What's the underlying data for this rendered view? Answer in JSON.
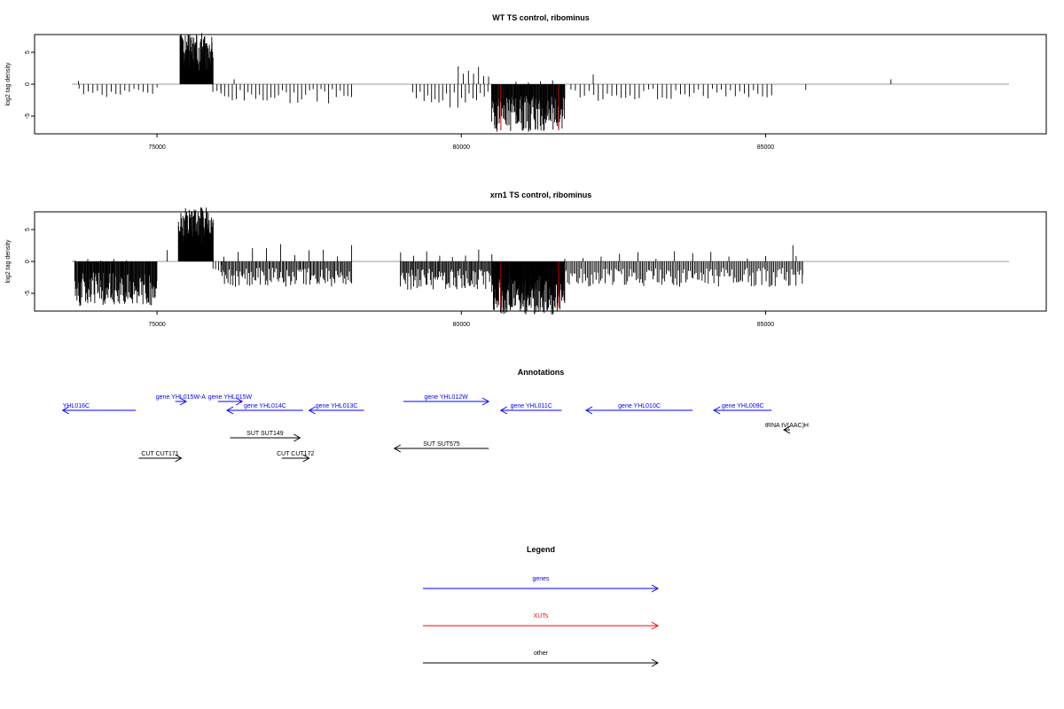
{
  "chart_data": [
    {
      "type": "bar",
      "title": "WT TS control, ribominus",
      "ylabel": "log2 tag density",
      "xlim": [
        73600,
        89000
      ],
      "ylim": [
        -9,
        9
      ],
      "x_ticks": [
        75000,
        80000,
        85000
      ],
      "x_tick_labels": [
        "75000",
        "80000",
        "85000"
      ],
      "y_ticks": [
        5,
        0,
        -5
      ],
      "y_tick_labels": [
        "5",
        "0",
        "-5"
      ],
      "xut_markers": [
        80650,
        81600
      ],
      "segments": [
        {
          "from": 73700,
          "to": 73720,
          "dir": 1,
          "maxval": 1.0,
          "n": 1,
          "seed": 1
        },
        {
          "from": 73720,
          "to": 75000,
          "dir": -1,
          "maxval": 2.0,
          "n": 18,
          "seed": 2
        },
        {
          "from": 75380,
          "to": 75920,
          "dir": 1,
          "maxval": 8.0,
          "n": 120,
          "seed": 3
        },
        {
          "from": 75920,
          "to": 76050,
          "dir": -1,
          "maxval": 1.5,
          "n": 3,
          "seed": 4
        },
        {
          "from": 76250,
          "to": 76280,
          "dir": 1,
          "maxval": 1.2,
          "n": 1,
          "seed": 5
        },
        {
          "from": 76050,
          "to": 78200,
          "dir": -1,
          "maxval": 3.0,
          "n": 35,
          "seed": 6
        },
        {
          "from": 79200,
          "to": 80500,
          "dir": -1,
          "maxval": 3.8,
          "n": 22,
          "seed": 7
        },
        {
          "from": 79950,
          "to": 80450,
          "dir": 1,
          "maxval": 3.0,
          "n": 7,
          "seed": 8
        },
        {
          "from": 80500,
          "to": 81700,
          "dir": -1,
          "maxval": 7.5,
          "n": 140,
          "seed": 9
        },
        {
          "from": 80900,
          "to": 81500,
          "dir": 1,
          "maxval": 0.6,
          "n": 4,
          "seed": 10
        },
        {
          "from": 82150,
          "to": 82180,
          "dir": 1,
          "maxval": 3.2,
          "n": 1,
          "seed": 11
        },
        {
          "from": 81800,
          "to": 85100,
          "dir": -1,
          "maxval": 2.6,
          "n": 45,
          "seed": 12
        },
        {
          "from": 85650,
          "to": 85670,
          "dir": -1,
          "maxval": 1.0,
          "n": 1,
          "seed": 13
        },
        {
          "from": 87050,
          "to": 87070,
          "dir": 1,
          "maxval": 1.0,
          "n": 1,
          "seed": 14
        }
      ]
    },
    {
      "type": "bar",
      "title": "xrn1 TS control, ribominus",
      "ylabel": "log2 tag density",
      "xlim": [
        73600,
        89000
      ],
      "ylim": [
        -9,
        9
      ],
      "x_ticks": [
        75000,
        80000,
        85000
      ],
      "x_tick_labels": [
        "75000",
        "80000",
        "85000"
      ],
      "y_ticks": [
        5,
        0,
        -5
      ],
      "y_tick_labels": [
        "5",
        "0",
        "-5"
      ],
      "xut_markers": [
        80650,
        81600
      ],
      "segments": [
        {
          "from": 73650,
          "to": 75000,
          "dir": -1,
          "maxval": 7.0,
          "n": 130,
          "seed": 21
        },
        {
          "from": 73650,
          "to": 74500,
          "dir": 1,
          "maxval": 0.5,
          "n": 5,
          "seed": 22
        },
        {
          "from": 75150,
          "to": 75180,
          "dir": 1,
          "maxval": 2.0,
          "n": 1,
          "seed": 23
        },
        {
          "from": 75350,
          "to": 75920,
          "dir": 1,
          "maxval": 8.5,
          "n": 130,
          "seed": 24
        },
        {
          "from": 75920,
          "to": 76100,
          "dir": -1,
          "maxval": 2.0,
          "n": 5,
          "seed": 25
        },
        {
          "from": 76050,
          "to": 78200,
          "dir": -1,
          "maxval": 4.0,
          "n": 110,
          "seed": 26
        },
        {
          "from": 76100,
          "to": 78200,
          "dir": 1,
          "maxval": 2.8,
          "n": 10,
          "seed": 27
        },
        {
          "from": 79000,
          "to": 80500,
          "dir": -1,
          "maxval": 4.5,
          "n": 90,
          "seed": 28
        },
        {
          "from": 79000,
          "to": 80500,
          "dir": 1,
          "maxval": 2.0,
          "n": 8,
          "seed": 29
        },
        {
          "from": 80500,
          "to": 81700,
          "dir": -1,
          "maxval": 8.5,
          "n": 200,
          "seed": 30
        },
        {
          "from": 81700,
          "to": 85600,
          "dir": -1,
          "maxval": 4.0,
          "n": 160,
          "seed": 31
        },
        {
          "from": 81700,
          "to": 85000,
          "dir": 1,
          "maxval": 1.6,
          "n": 12,
          "seed": 32
        },
        {
          "from": 85450,
          "to": 85500,
          "dir": 1,
          "maxval": 3.0,
          "n": 2,
          "seed": 33
        },
        {
          "from": 85600,
          "to": 85620,
          "dir": -1,
          "maxval": 3.0,
          "n": 1,
          "seed": 34
        }
      ]
    }
  ],
  "annotations": {
    "title": "Annotations",
    "features": [
      {
        "label": "YHL016C",
        "kind": "gene",
        "start": 73450,
        "end": 74650,
        "strand": "-",
        "row": 0,
        "label_pos": "left"
      },
      {
        "label": "gene YHL015W-A",
        "kind": "gene",
        "start": 75300,
        "end": 75480,
        "strand": "+",
        "row": 1,
        "label_pos": "center"
      },
      {
        "label": "gene YHL015W",
        "kind": "gene",
        "start": 76000,
        "end": 76400,
        "strand": "+",
        "row": 1,
        "label_pos": "center"
      },
      {
        "label": "gene YHL014C",
        "kind": "gene",
        "start": 76150,
        "end": 77400,
        "strand": "-",
        "row": 0,
        "label_pos": "center"
      },
      {
        "label": "gene YHL013C",
        "kind": "gene",
        "start": 77500,
        "end": 78400,
        "strand": "-",
        "row": 0,
        "label_pos": "center"
      },
      {
        "label": "gene YHL012W",
        "kind": "gene",
        "start": 79050,
        "end": 80450,
        "strand": "+",
        "row": 1,
        "label_pos": "center"
      },
      {
        "label": "gene YHL011C",
        "kind": "gene",
        "start": 80650,
        "end": 81650,
        "strand": "-",
        "row": 0,
        "label_pos": "center"
      },
      {
        "label": "gene YHL010C",
        "kind": "gene",
        "start": 82050,
        "end": 83800,
        "strand": "-",
        "row": 0,
        "label_pos": "center"
      },
      {
        "label": "gene YHL009C",
        "kind": "gene",
        "start": 84150,
        "end": 85100,
        "strand": "-",
        "row": 0,
        "label_pos": "center"
      },
      {
        "label": "tRNA tV(AAC)H",
        "kind": "other",
        "start": 85300,
        "end": 85400,
        "strand": "-",
        "row": 2,
        "label_pos": "center"
      },
      {
        "label": "SUT SUT149",
        "kind": "other",
        "start": 76200,
        "end": 77350,
        "strand": "+",
        "row": 3,
        "label_pos": "center"
      },
      {
        "label": "SUT SUT575",
        "kind": "other",
        "start": 78900,
        "end": 80450,
        "strand": "-",
        "row": 4,
        "label_pos": "center"
      },
      {
        "label": "CUT CUT171",
        "kind": "other",
        "start": 74700,
        "end": 75400,
        "strand": "+",
        "row": 5,
        "label_pos": "center"
      },
      {
        "label": "CUT CUT172",
        "kind": "other",
        "start": 77050,
        "end": 77500,
        "strand": "+",
        "row": 5,
        "label_pos": "center"
      }
    ]
  },
  "legend": {
    "title": "Legend",
    "items": [
      {
        "label": "genes",
        "color": "#0000ff"
      },
      {
        "label": "XUTs",
        "color": "#ff0000"
      },
      {
        "label": "other",
        "color": "#000000"
      }
    ]
  },
  "colors": {
    "gene": "#0000ff",
    "xut": "#ff0000",
    "other": "#000000",
    "bar": "#000000",
    "baseline": "#9a9a9a",
    "marker": "#cc0000"
  }
}
